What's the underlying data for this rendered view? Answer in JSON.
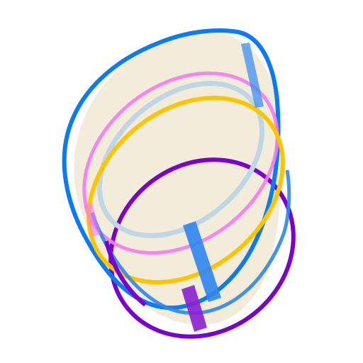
{
  "drawing": {
    "shapes": [
      {
        "name": "cream-fill-body",
        "kind": "fill",
        "color": "#F4ECDB"
      },
      {
        "name": "purple-ellipse",
        "kind": "outline",
        "color": "#7A00CC"
      },
      {
        "name": "blue-outer-ellipse",
        "kind": "outline",
        "color": "#0A7AF5"
      },
      {
        "name": "magenta-ellipse",
        "kind": "outline",
        "color": "#F57BF0"
      },
      {
        "name": "gold-ellipse",
        "kind": "outline",
        "color": "#FFC400"
      },
      {
        "name": "light-blue-ellipse",
        "kind": "outline",
        "color": "#BFD6E6"
      },
      {
        "name": "blue-bar-lower",
        "kind": "bar",
        "color": "#2F86F0"
      },
      {
        "name": "purple-bar",
        "kind": "bar",
        "color": "#8A1FD0"
      },
      {
        "name": "blue-bar-upper",
        "kind": "bar",
        "color": "#3C8FF0"
      }
    ]
  }
}
